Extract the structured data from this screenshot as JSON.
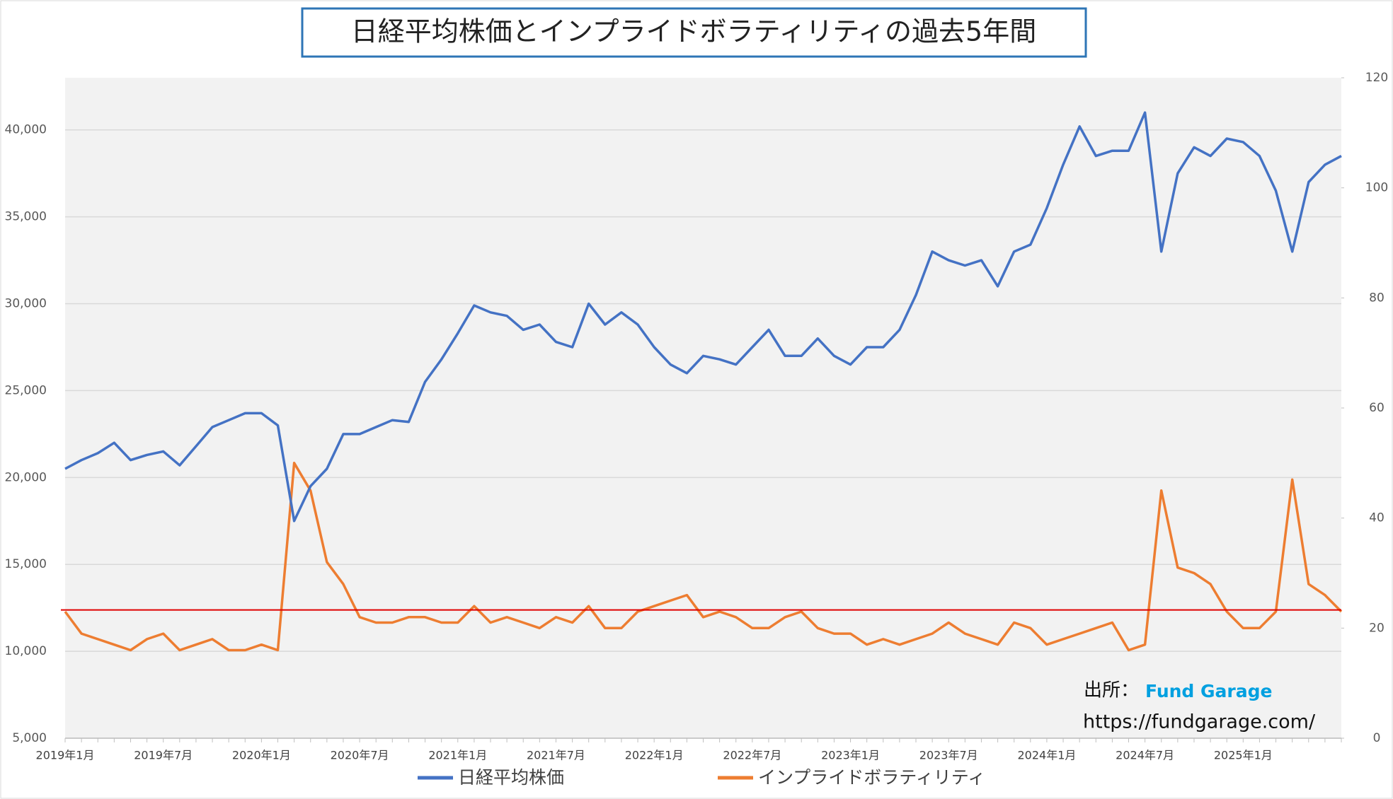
{
  "chart_data": {
    "type": "line",
    "title": "日経平均株価とインプライドボラティリティの過去5年間",
    "categories": [
      "2019年1月",
      null,
      null,
      null,
      null,
      null,
      "2019年7月",
      null,
      null,
      null,
      null,
      null,
      "2020年1月",
      null,
      null,
      null,
      null,
      null,
      "2020年7月",
      null,
      null,
      null,
      null,
      null,
      "2021年1月",
      null,
      null,
      null,
      null,
      null,
      "2021年7月",
      null,
      null,
      null,
      null,
      null,
      "2022年1月",
      null,
      null,
      null,
      null,
      null,
      "2022年7月",
      null,
      null,
      null,
      null,
      null,
      "2023年1月",
      null,
      null,
      null,
      null,
      null,
      "2023年7月",
      null,
      null,
      null,
      null,
      null,
      "2024年1月",
      null,
      null,
      null,
      null,
      null,
      "2024年7月",
      null,
      null,
      null,
      null,
      null,
      "2025年1月",
      null,
      null,
      null,
      null,
      null,
      null
    ],
    "series": [
      {
        "name": "日経平均株価",
        "color": "#4472c4",
        "axis": "y",
        "values": [
          20500,
          21000,
          21400,
          22000,
          21000,
          21300,
          21500,
          20700,
          21800,
          22900,
          23300,
          23700,
          23700,
          23000,
          17500,
          19500,
          20500,
          22500,
          22500,
          22900,
          23300,
          23200,
          25500,
          26800,
          28300,
          29900,
          29500,
          29300,
          28500,
          28800,
          27800,
          27500,
          30000,
          28800,
          29500,
          28800,
          27500,
          26500,
          26000,
          27000,
          26800,
          26500,
          27500,
          28500,
          27000,
          27000,
          28000,
          27000,
          26500,
          27500,
          27500,
          28500,
          30500,
          33000,
          32500,
          32200,
          32500,
          31000,
          33000,
          33400,
          35500,
          38000,
          40200,
          38500,
          38800,
          38800,
          41000,
          33000,
          37500,
          39000,
          38500,
          39500,
          39300,
          38500,
          36500,
          33000,
          37000,
          38000,
          38500
        ]
      },
      {
        "name": "インプライドボラティリティ",
        "color": "#ed7d31",
        "axis": "y2",
        "values": [
          23,
          19,
          18,
          17,
          16,
          18,
          19,
          16,
          17,
          18,
          16,
          16,
          17,
          16,
          50,
          45,
          32,
          28,
          22,
          21,
          21,
          22,
          22,
          21,
          21,
          24,
          21,
          22,
          21,
          20,
          22,
          21,
          24,
          20,
          20,
          23,
          24,
          25,
          26,
          22,
          23,
          22,
          20,
          20,
          22,
          23,
          20,
          19,
          19,
          17,
          18,
          17,
          18,
          19,
          21,
          19,
          18,
          17,
          21,
          20,
          17,
          18,
          19,
          20,
          21,
          16,
          17,
          45,
          31,
          30,
          28,
          23,
          20,
          20,
          23,
          47,
          28,
          26,
          23
        ]
      }
    ],
    "ylim": [
      5000,
      43000
    ],
    "yticks": [
      {
        "value": 5000,
        "label": "5,000"
      },
      {
        "value": 10000,
        "label": "10,000"
      },
      {
        "value": 15000,
        "label": "15,000"
      },
      {
        "value": 20000,
        "label": "20,000"
      },
      {
        "value": 25000,
        "label": "25,000"
      },
      {
        "value": 30000,
        "label": "30,000"
      },
      {
        "value": 35000,
        "label": "35,000"
      },
      {
        "value": 40000,
        "label": "40,000"
      }
    ],
    "y2lim": [
      0,
      120
    ],
    "y2ticks": [
      0,
      20,
      40,
      60,
      80,
      100,
      120
    ],
    "grid": true,
    "legend": "bottom",
    "reference_line": {
      "axis": "y2",
      "value": 23.3,
      "color": "#e00000"
    },
    "source": {
      "label": "出所：",
      "name": "Fund Garage",
      "url": "https://fundgarage.com/"
    }
  }
}
